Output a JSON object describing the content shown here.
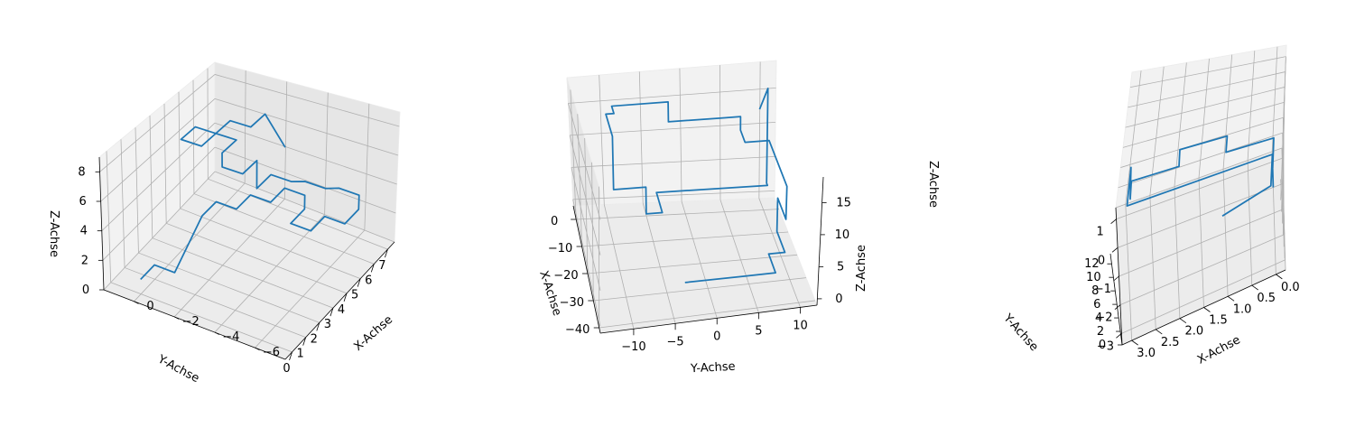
{
  "chart_data": [
    {
      "type": "line3d",
      "series_color": "#1f77b4",
      "grid": true,
      "xlabel": "X-Achse",
      "ylabel": "Y-Achse",
      "zlabel": "Z-Achse",
      "xlim": [
        -7.5,
        1.5
      ],
      "ylim": [
        -0.5,
        7.5
      ],
      "zlim": [
        0,
        9
      ],
      "xticks": [
        0,
        -2,
        -4,
        -6
      ],
      "yticks": [
        0,
        1,
        2,
        3,
        4,
        5,
        6,
        7
      ],
      "zticks": [
        0,
        2,
        4,
        6,
        8
      ],
      "x": [
        0,
        0,
        0,
        -1,
        -1,
        -1,
        -2,
        -2,
        -3,
        -3,
        -4,
        -4,
        -4,
        -5,
        -5,
        -6,
        -6,
        -6,
        -5,
        -5,
        -4,
        -4,
        -3,
        -3,
        -3,
        -3,
        -2,
        -2,
        -2,
        -1,
        -1,
        0,
        0,
        -1,
        -1,
        -2,
        -2,
        -3
      ],
      "y": [
        0,
        1,
        1,
        1,
        3,
        4,
        4,
        5,
        5,
        6,
        6,
        6,
        5,
        5,
        6,
        6,
        7,
        7,
        7,
        6,
        6,
        5,
        5,
        4,
        4,
        3,
        3,
        3,
        4,
        4,
        3,
        3,
        4,
        4,
        5,
        5,
        6,
        6
      ],
      "z": [
        1,
        1,
        1,
        1,
        3,
        3,
        3,
        3,
        3,
        3,
        3,
        2,
        2,
        2,
        2,
        2,
        2,
        3,
        3,
        4,
        4,
        5,
        5,
        5,
        7,
        7,
        7,
        8,
        8,
        8,
        8,
        8,
        8,
        8,
        8,
        8,
        8,
        6
      ]
    },
    {
      "type": "line3d",
      "series_color": "#1f77b4",
      "grid": true,
      "xlabel": "X-Achse",
      "ylabel": "Y-Achse",
      "zlabel": "Z-Achse",
      "xlim": [
        -42,
        5
      ],
      "ylim": [
        -14,
        12
      ],
      "zlim": [
        -1,
        19
      ],
      "xticks": [
        0,
        -10,
        -20,
        -30,
        -40
      ],
      "yticks": [
        10,
        5,
        0,
        -5,
        -10
      ],
      "zticks": [
        0,
        5,
        10,
        15
      ],
      "x": [
        -32,
        -32,
        -32,
        -30,
        -24,
        -24,
        -15,
        -15,
        -24,
        -24,
        -10,
        -5,
        -5,
        0,
        0,
        0,
        0,
        0,
        0,
        -3,
        -3,
        -12,
        -12,
        -12,
        -12,
        -12,
        -12,
        -4,
        -4,
        -3,
        -3,
        -3
      ],
      "y": [
        -3,
        4,
        8,
        8,
        8,
        10,
        10,
        10,
        10,
        10,
        10,
        10,
        7,
        7,
        7,
        5,
        -2,
        -2,
        -9,
        -9,
        -10,
        -10,
        -10,
        -10,
        -6,
        -6,
        -4,
        -4,
        10,
        10,
        10,
        9
      ],
      "z": [
        1,
        1,
        1,
        1,
        1,
        1,
        1,
        6,
        6,
        11,
        11,
        11,
        11,
        11,
        13,
        13,
        13,
        16,
        16,
        16,
        16,
        16,
        13,
        8,
        8,
        4,
        4,
        4,
        4,
        4,
        18,
        15
      ]
    },
    {
      "type": "line3d",
      "series_color": "#1f77b4",
      "grid": true,
      "xlabel": "X-Achse",
      "ylabel": "Y-Achse",
      "zlabel": "Z-Achse",
      "xlim": [
        -0.2,
        3.2
      ],
      "ylim": [
        -3.4,
        1.4
      ],
      "zlim": [
        0,
        13.5
      ],
      "xticks": [
        0.0,
        0.5,
        1.0,
        1.5,
        2.0,
        2.5,
        3.0
      ],
      "yticks": [
        -3,
        -2,
        -1,
        0,
        1
      ],
      "zticks": [
        0,
        2,
        4,
        6,
        8,
        10,
        12
      ],
      "x": [
        0,
        0,
        0,
        3,
        3,
        3,
        3,
        3,
        2,
        2,
        1,
        1,
        0,
        0,
        0,
        0,
        1
      ],
      "y": [
        0,
        1,
        1,
        1,
        1,
        0,
        0,
        0,
        0,
        0,
        0,
        -1,
        -1,
        -2,
        -2,
        -3,
        -3
      ],
      "z": [
        0,
        0,
        1,
        1,
        5,
        5,
        6,
        7,
        7,
        9,
        9,
        11,
        11,
        11,
        13,
        13,
        11
      ]
    }
  ]
}
